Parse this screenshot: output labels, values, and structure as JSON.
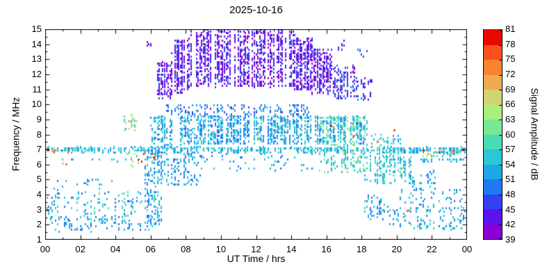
{
  "chart_data": {
    "type": "scatter",
    "title": "2025-10-16",
    "xlabel": "UT Time / hrs",
    "ylabel": "Frequency / MHz",
    "xlim": [
      0,
      24
    ],
    "ylim": [
      1,
      15
    ],
    "grid": false,
    "legend": "none",
    "x_ticks": {
      "values": [
        0,
        2,
        4,
        6,
        8,
        10,
        12,
        14,
        16,
        18,
        20,
        22,
        24
      ],
      "labels": [
        "00",
        "02",
        "04",
        "06",
        "08",
        "10",
        "12",
        "14",
        "16",
        "18",
        "20",
        "22",
        "00"
      ],
      "minor_step": 1
    },
    "y_ticks": {
      "values": [
        1,
        2,
        3,
        4,
        5,
        6,
        7,
        8,
        9,
        10,
        11,
        12,
        13,
        14,
        15
      ],
      "labels": [
        "1",
        "2",
        "3",
        "4",
        "5",
        "6",
        "7",
        "8",
        "9",
        "10",
        "11",
        "12",
        "13",
        "14",
        "15"
      ]
    },
    "colorbar": {
      "label": "Signal Amplitude / dB",
      "min": 39,
      "max": 81,
      "step": 3,
      "tick_labels": [
        "39",
        "42",
        "45",
        "48",
        "51",
        "54",
        "57",
        "60",
        "63",
        "66",
        "69",
        "72",
        "75",
        "78",
        "81"
      ],
      "colors": [
        "#8a00d4",
        "#5a14ee",
        "#3440f4",
        "#2079f2",
        "#1ca8e8",
        "#28c8d4",
        "#48dcb4",
        "#78e894",
        "#aaee7c",
        "#d2d470",
        "#eeaa4e",
        "#f8842e",
        "#fa4f1e",
        "#e80800"
      ]
    },
    "regions": [
      {
        "name": "7MHz-band-allday",
        "t": [
          0,
          24
        ],
        "f": [
          6.85,
          7.15
        ],
        "n": 650,
        "amp": [
          51,
          57
        ]
      },
      {
        "name": "7MHz-hot-early",
        "t": [
          0,
          1.3
        ],
        "f": [
          6.85,
          7.1
        ],
        "n": 8,
        "amp": [
          60,
          81
        ]
      },
      {
        "name": "6.5MHz-hot-dawn",
        "t": [
          5.0,
          6.6
        ],
        "f": [
          6.2,
          6.9
        ],
        "n": 10,
        "amp": [
          57,
          81
        ]
      },
      {
        "name": "7MHz-hot-late",
        "t": [
          21.5,
          24
        ],
        "f": [
          6.6,
          7.05
        ],
        "n": 16,
        "amp": [
          57,
          81
        ]
      },
      {
        "name": "night-low-1",
        "t": [
          0,
          6.3
        ],
        "f": [
          1.6,
          2.6
        ],
        "n": 130,
        "amp": [
          48,
          57
        ]
      },
      {
        "name": "night-low-2",
        "t": [
          0,
          6.3
        ],
        "f": [
          2.6,
          4.2
        ],
        "n": 150,
        "amp": [
          48,
          60
        ]
      },
      {
        "name": "night-mid-sparse",
        "t": [
          0,
          4.5
        ],
        "f": [
          4.3,
          5.1
        ],
        "n": 20,
        "amp": [
          48,
          57
        ]
      },
      {
        "name": "predawn-6MHz",
        "t": [
          4.4,
          5.4
        ],
        "f": [
          5.9,
          7.0
        ],
        "n": 18,
        "amp": [
          54,
          66
        ]
      },
      {
        "name": "predawn-9MHz-column",
        "t": [
          4.5,
          5.2
        ],
        "f": [
          8.3,
          9.6
        ],
        "n": 24,
        "amp": [
          48,
          69
        ]
      },
      {
        "name": "6.3MHz-dashes-night",
        "t": [
          0.5,
          5.5
        ],
        "f": [
          6.25,
          6.4
        ],
        "n": 14,
        "amp": [
          51,
          57
        ]
      },
      {
        "name": "predawn-14MHz-dots",
        "t": [
          5.75,
          6.15
        ],
        "f": [
          13.85,
          14.25
        ],
        "n": 10,
        "amp": [
          39,
          45
        ]
      },
      {
        "name": "dawn-rise-low",
        "t": [
          5.7,
          6.6
        ],
        "f": [
          2.0,
          6.5
        ],
        "n": 130,
        "amp": [
          48,
          57
        ]
      },
      {
        "name": "dawn-rise-high",
        "t": [
          6.0,
          6.9
        ],
        "f": [
          6.5,
          9.2
        ],
        "n": 90,
        "amp": [
          48,
          57
        ]
      },
      {
        "name": "day-mid-dense",
        "t": [
          6.6,
          18.2
        ],
        "f": [
          7.4,
          9.3
        ],
        "n": 1300,
        "amp": [
          48,
          57
        ]
      },
      {
        "name": "day-mid-top",
        "t": [
          6.8,
          15.0
        ],
        "f": [
          9.3,
          10.0
        ],
        "n": 190,
        "amp": [
          45,
          54
        ]
      },
      {
        "name": "day-low-morning",
        "t": [
          6.5,
          8.8
        ],
        "f": [
          4.6,
          7.3
        ],
        "n": 150,
        "amp": [
          48,
          57
        ]
      },
      {
        "name": "day-low-noon-sparse",
        "t": [
          8.8,
          15.5
        ],
        "f": [
          5.6,
          6.9
        ],
        "n": 55,
        "amp": [
          48,
          57
        ]
      },
      {
        "name": "arch-rise-1",
        "t": [
          6.4,
          7.2
        ],
        "f": [
          10.4,
          12.8
        ],
        "n": 140,
        "amp": [
          39,
          48
        ]
      },
      {
        "name": "arch-rise-2",
        "t": [
          7.2,
          8.2
        ],
        "f": [
          10.8,
          14.3
        ],
        "n": 300,
        "amp": [
          39,
          48
        ]
      },
      {
        "name": "arch-top",
        "t": [
          8.2,
          14.2
        ],
        "f": [
          11.2,
          15.0
        ],
        "n": 1500,
        "amp": [
          39,
          48
        ]
      },
      {
        "name": "arch-fall-1",
        "t": [
          14.2,
          15.2
        ],
        "f": [
          11.0,
          14.4
        ],
        "n": 250,
        "amp": [
          39,
          48
        ]
      },
      {
        "name": "arch-fall-2",
        "t": [
          15.2,
          16.3
        ],
        "f": [
          10.7,
          13.7
        ],
        "n": 210,
        "amp": [
          39,
          48
        ]
      },
      {
        "name": "arch-fall-3",
        "t": [
          16.3,
          17.6
        ],
        "f": [
          10.4,
          12.7
        ],
        "n": 140,
        "amp": [
          39,
          51
        ]
      },
      {
        "name": "dusk-14MHz-specks",
        "t": [
          16.7,
          17.4
        ],
        "f": [
          13.7,
          14.3
        ],
        "n": 8,
        "amp": [
          42,
          48
        ]
      },
      {
        "name": "dusk-10MHz-clump",
        "t": [
          17.6,
          18.6
        ],
        "f": [
          10.3,
          11.8
        ],
        "n": 55,
        "amp": [
          42,
          51
        ]
      },
      {
        "name": "dusk-13MHz-dots",
        "t": [
          17.8,
          18.4
        ],
        "f": [
          13.2,
          13.7
        ],
        "n": 6,
        "amp": [
          45,
          51
        ]
      },
      {
        "name": "afternoon-green-overlay",
        "t": [
          15.5,
          18.4
        ],
        "f": [
          7.2,
          9.2
        ],
        "n": 170,
        "amp": [
          54,
          63
        ]
      },
      {
        "name": "dusk-6MHz",
        "t": [
          15.5,
          18.2
        ],
        "f": [
          5.5,
          7.0
        ],
        "n": 130,
        "amp": [
          51,
          63
        ]
      },
      {
        "name": "evening-5-7MHz",
        "t": [
          18.2,
          20.8
        ],
        "f": [
          4.8,
          6.9
        ],
        "n": 250,
        "amp": [
          51,
          60
        ]
      },
      {
        "name": "evening-7-8MHz",
        "t": [
          18.4,
          20.2
        ],
        "f": [
          6.9,
          8.1
        ],
        "n": 55,
        "amp": [
          51,
          60
        ]
      },
      {
        "name": "late-5MHz",
        "t": [
          20.8,
          22.3
        ],
        "f": [
          4.4,
          5.6
        ],
        "n": 45,
        "amp": [
          48,
          57
        ]
      },
      {
        "name": "evening-low-cluster",
        "t": [
          18.2,
          19.2
        ],
        "f": [
          2.4,
          4.0
        ],
        "n": 60,
        "amp": [
          48,
          57
        ]
      },
      {
        "name": "night2-low",
        "t": [
          19.2,
          24
        ],
        "f": [
          1.7,
          3.4
        ],
        "n": 150,
        "amp": [
          48,
          57
        ]
      },
      {
        "name": "night2-low-upper",
        "t": [
          20,
          24
        ],
        "f": [
          3.4,
          4.4
        ],
        "n": 55,
        "amp": [
          48,
          57
        ]
      },
      {
        "name": "6.3MHz-line-late",
        "t": [
          21.3,
          24
        ],
        "f": [
          6.28,
          6.42
        ],
        "n": 45,
        "amp": [
          51,
          57
        ]
      },
      {
        "name": "7MHz-late",
        "t": [
          22,
          24
        ],
        "f": [
          6.6,
          7.1
        ],
        "n": 45,
        "amp": [
          51,
          60
        ]
      }
    ],
    "outliers": [
      [
        0.15,
        7.0,
        79
      ],
      [
        0.4,
        6.9,
        70
      ],
      [
        1.0,
        6.1,
        68
      ],
      [
        1.2,
        6.05,
        72
      ],
      [
        5.3,
        6.35,
        76
      ],
      [
        6.15,
        6.5,
        79
      ],
      [
        4.75,
        8.9,
        70
      ],
      [
        4.9,
        9.3,
        67
      ],
      [
        14.9,
        8.7,
        66
      ],
      [
        16.25,
        8.6,
        79
      ],
      [
        16.4,
        8.8,
        68
      ],
      [
        17.5,
        7.9,
        73
      ],
      [
        18.9,
        7.5,
        74
      ],
      [
        19.85,
        8.3,
        77
      ],
      [
        20.6,
        2.95,
        75
      ],
      [
        21.9,
        6.7,
        65
      ],
      [
        22.2,
        6.85,
        62
      ],
      [
        22.55,
        6.9,
        73
      ],
      [
        23.2,
        6.9,
        76
      ],
      [
        23.75,
        7.0,
        79
      ]
    ]
  }
}
